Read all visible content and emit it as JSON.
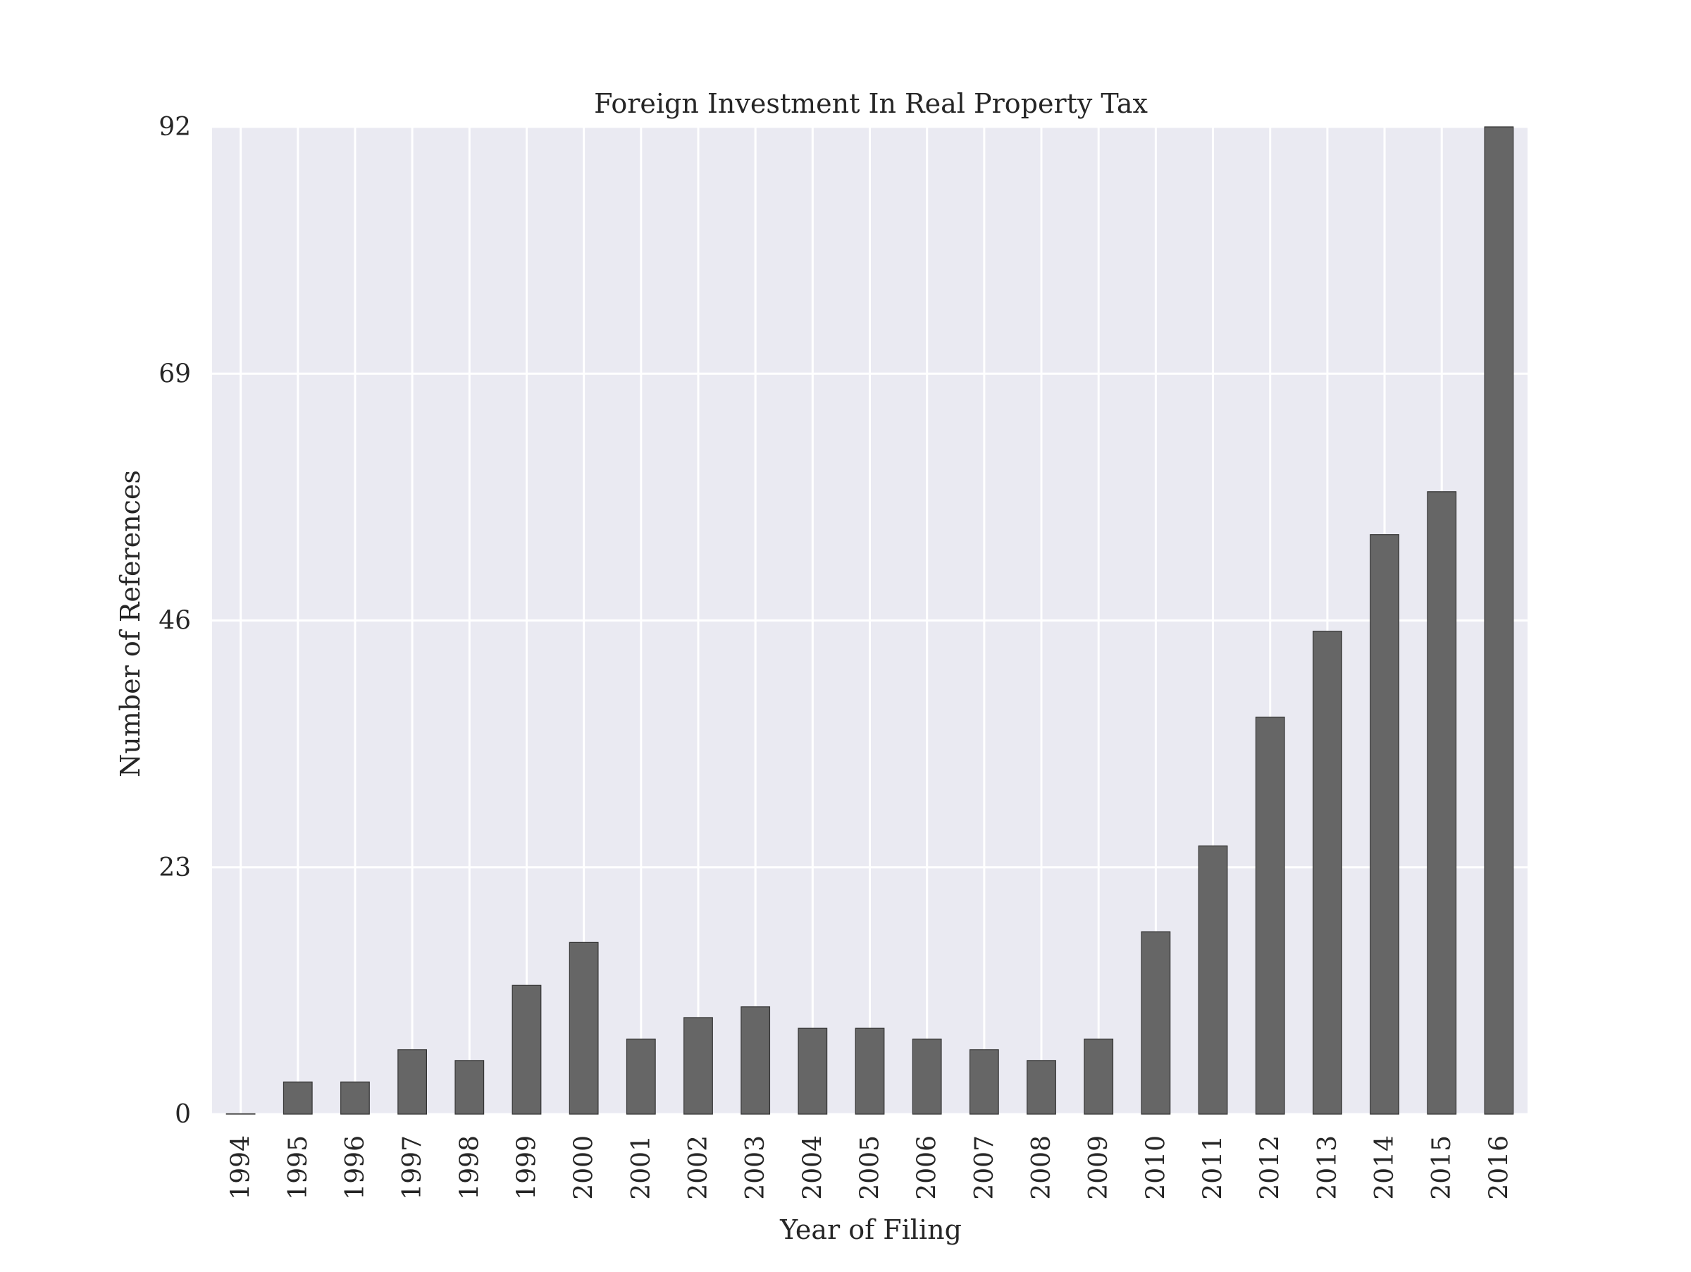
{
  "chart_data": {
    "type": "bar",
    "title": "Foreign Investment In Real Property Tax",
    "xlabel": "Year of Filing",
    "ylabel": "Number of References",
    "categories": [
      "1994",
      "1995",
      "1996",
      "1997",
      "1998",
      "1999",
      "2000",
      "2001",
      "2002",
      "2003",
      "2004",
      "2005",
      "2006",
      "2007",
      "2008",
      "2009",
      "2010",
      "2011",
      "2012",
      "2013",
      "2014",
      "2015",
      "2016"
    ],
    "values": [
      0,
      3,
      3,
      6,
      5,
      12,
      16,
      7,
      9,
      10,
      8,
      8,
      7,
      6,
      5,
      7,
      17,
      25,
      37,
      45,
      54,
      58,
      92
    ],
    "yticks": [
      0,
      23,
      46,
      69,
      92
    ],
    "ylim": [
      0,
      92
    ],
    "grid": true,
    "colors": {
      "background": "#EAEAF2",
      "grid": "#FFFFFF",
      "bar": "#666666",
      "bar_edge": "#333333",
      "text": "#262626"
    }
  }
}
